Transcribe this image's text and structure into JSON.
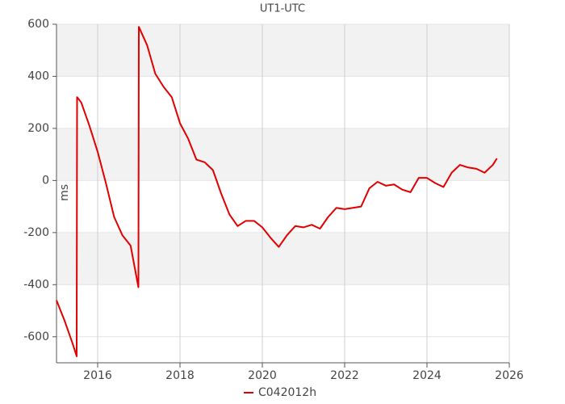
{
  "chart_data": {
    "type": "line",
    "title": "UT1-UTC",
    "y_label": "ms",
    "x": [
      2015.0,
      2015.2,
      2015.4,
      2015.49,
      2015.5,
      2015.6,
      2015.8,
      2016.0,
      2016.2,
      2016.4,
      2016.6,
      2016.8,
      2016.99,
      2017.0,
      2017.2,
      2017.4,
      2017.6,
      2017.8,
      2018.0,
      2018.2,
      2018.4,
      2018.6,
      2018.8,
      2019.0,
      2019.2,
      2019.4,
      2019.6,
      2019.8,
      2020.0,
      2020.2,
      2020.4,
      2020.6,
      2020.8,
      2021.0,
      2021.2,
      2021.4,
      2021.6,
      2021.8,
      2022.0,
      2022.2,
      2022.4,
      2022.6,
      2022.8,
      2023.0,
      2023.2,
      2023.4,
      2023.6,
      2023.8,
      2024.0,
      2024.2,
      2024.4,
      2024.6,
      2024.8,
      2025.0,
      2025.2,
      2025.4,
      2025.6,
      2025.7
    ],
    "series": [
      {
        "name": "C042012h",
        "color": "#e00000",
        "values": [
          -460,
          -540,
          -630,
          -675,
          320,
          300,
          210,
          110,
          -10,
          -140,
          -210,
          -250,
          -410,
          590,
          520,
          410,
          360,
          320,
          220,
          160,
          80,
          70,
          40,
          -50,
          -130,
          -175,
          -155,
          -155,
          -180,
          -220,
          -255,
          -210,
          -175,
          -180,
          -170,
          -185,
          -140,
          -105,
          -110,
          -105,
          -100,
          -30,
          -5,
          -20,
          -15,
          -35,
          -45,
          10,
          10,
          -10,
          -25,
          30,
          60,
          50,
          45,
          30,
          60,
          85
        ]
      }
    ],
    "xlim": [
      2015,
      2026
    ],
    "xticks": [
      2016,
      2018,
      2020,
      2022,
      2024,
      2026
    ],
    "ylim": [
      -700,
      600
    ],
    "yticks": [
      -600,
      -400,
      -200,
      0,
      200,
      400,
      600
    ],
    "grid": true,
    "bands": true,
    "legend": "bottom"
  }
}
